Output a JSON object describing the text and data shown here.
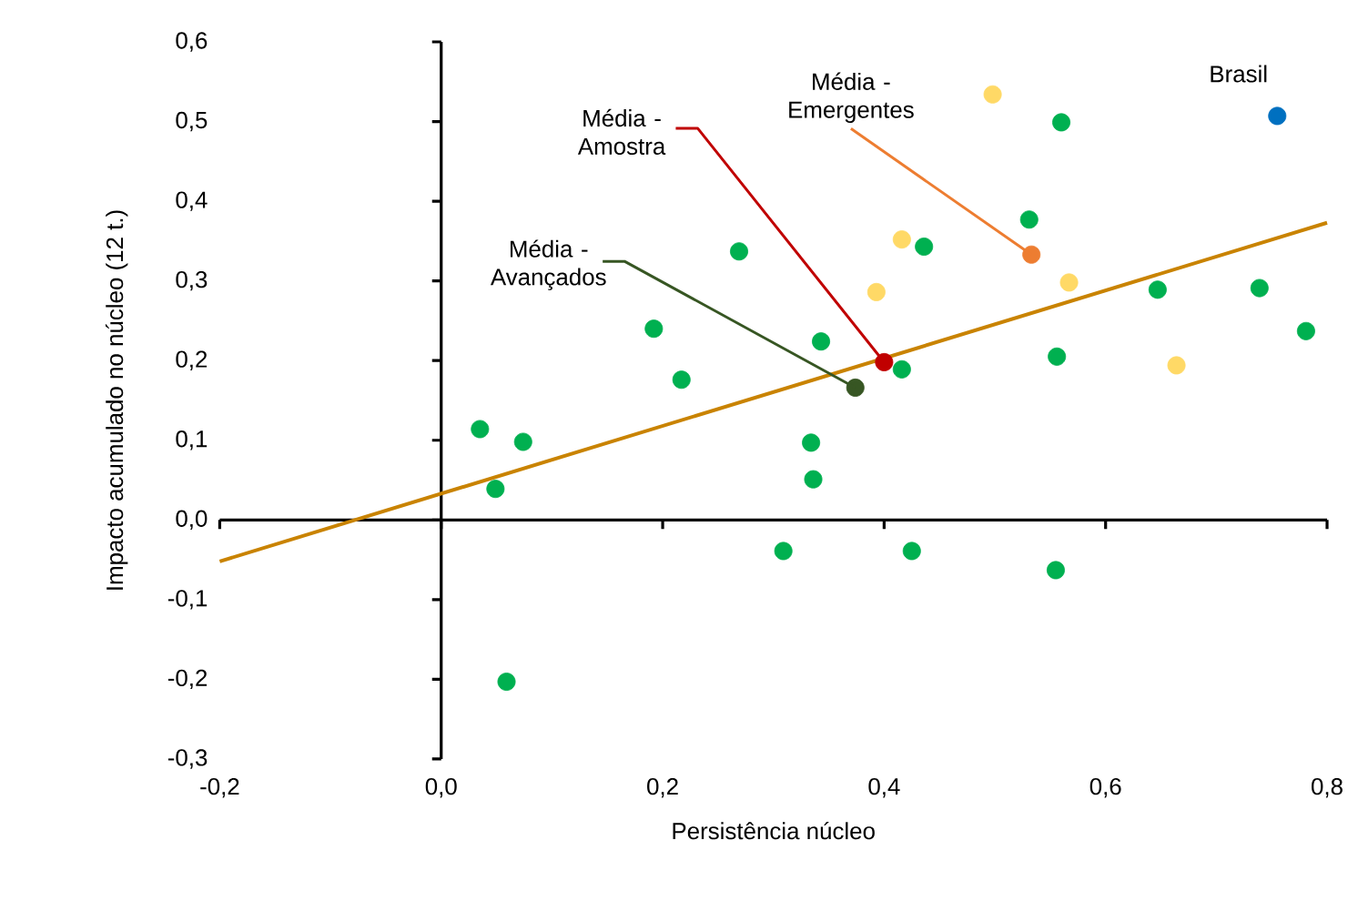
{
  "chart_data": {
    "type": "scatter",
    "xlabel": "Persistência núcleo",
    "ylabel": "Impacto acumulado no núcleo (12 t.)",
    "xlim": [
      -0.2,
      0.8
    ],
    "ylim": [
      -0.3,
      0.6
    ],
    "xticks": [
      {
        "value": -0.2,
        "label": "-0,2"
      },
      {
        "value": 0,
        "label": "0,0"
      },
      {
        "value": 0.2,
        "label": "0,2"
      },
      {
        "value": 0.4,
        "label": "0,4"
      },
      {
        "value": 0.6,
        "label": "0,6"
      },
      {
        "value": 0.8,
        "label": "0,8"
      }
    ],
    "yticks": [
      {
        "value": -0.3,
        "label": "-0,3"
      },
      {
        "value": -0.2,
        "label": "-0,2"
      },
      {
        "value": -0.1,
        "label": "-0,1"
      },
      {
        "value": 0,
        "label": "0,0"
      },
      {
        "value": 0.1,
        "label": "0,1"
      },
      {
        "value": 0.2,
        "label": "0,2"
      },
      {
        "value": 0.3,
        "label": "0,3"
      },
      {
        "value": 0.4,
        "label": "0,4"
      },
      {
        "value": 0.5,
        "label": "0,5"
      },
      {
        "value": 0.6,
        "label": "0,6"
      }
    ],
    "series": [
      {
        "color": "#00b050",
        "x": [
          0.035,
          0.074,
          0.049,
          0.059,
          0.192,
          0.217,
          0.269,
          0.343,
          0.334,
          0.336,
          0.309,
          0.425,
          0.555,
          0.436,
          0.416,
          0.531,
          0.56,
          0.556,
          0.647,
          0.739,
          0.781
        ],
        "values": [
          0.114,
          0.098,
          0.039,
          -0.203,
          0.24,
          0.176,
          0.337,
          0.224,
          0.097,
          0.051,
          -0.039,
          -0.039,
          -0.063,
          0.343,
          0.189,
          0.377,
          0.499,
          0.205,
          0.289,
          0.291,
          0.237
        ]
      },
      {
        "color": "#ffd966",
        "x": [
          0.498,
          0.416,
          0.393,
          0.567,
          0.664
        ],
        "values": [
          0.534,
          0.352,
          0.286,
          0.298,
          0.194
        ]
      },
      {
        "type": "line",
        "color": "#c98300",
        "marker": "none",
        "x": [
          -0.2,
          0.8
        ],
        "values": [
          -0.052,
          0.373
        ]
      },
      {
        "color": "#0070c0",
        "x": [
          0.755
        ],
        "values": [
          0.507
        ]
      },
      {
        "color": "#ed7d31",
        "x": [
          0.533
        ],
        "values": [
          0.333
        ]
      },
      {
        "color": "#c00000",
        "x": [
          0.4
        ],
        "values": [
          0.198
        ]
      },
      {
        "color": "#375623",
        "x": [
          0.374
        ],
        "values": [
          0.166
        ]
      }
    ],
    "annotations": [
      {
        "text": "Média - Emergentes",
        "x": 0.533,
        "y": 0.333
      },
      {
        "text": "Média - Amostra",
        "x": 0.4,
        "y": 0.198
      },
      {
        "text": "Média - Avançados",
        "x": 0.374,
        "y": 0.166
      },
      {
        "text": "Brasil",
        "x": 0.755,
        "y": 0.507
      }
    ]
  }
}
